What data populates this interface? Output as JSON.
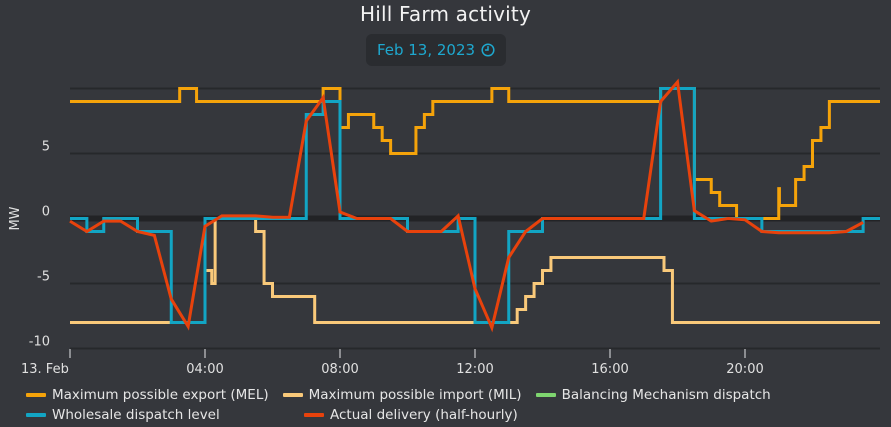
{
  "header": {
    "title": "Hill Farm activity",
    "date_label": "Feb 13, 2023",
    "date_icon": "clock-icon"
  },
  "colors": {
    "background": "#35373c",
    "grid": "#26282b",
    "zero_line": "#222326",
    "mel": "#f5a30a",
    "mil": "#f9c97a",
    "bm": "#7ed56f",
    "wholesale": "#12a5c4",
    "actual": "#e8420c",
    "date_text": "#1ea8cf"
  },
  "legend": {
    "row1": [
      {
        "label": "Maximum possible export (MEL)",
        "color": "#f5a30a"
      },
      {
        "label": "Maximum possible import (MIL)",
        "color": "#f9c97a"
      },
      {
        "label": "Balancing Mechanism dispatch",
        "color": "#7ed56f"
      }
    ],
    "row2": [
      {
        "label": "Wholesale dispatch level",
        "color": "#12a5c4"
      },
      {
        "label": "Actual delivery (half-hourly)",
        "color": "#e8420c"
      }
    ]
  },
  "chart_data": {
    "type": "line",
    "title": "Hill Farm activity",
    "subtitle": "Feb 13, 2023",
    "xlabel": "",
    "ylabel": "MW",
    "xlim_hours": [
      0,
      24
    ],
    "ylim": [
      -10,
      10
    ],
    "yticks": [
      -10,
      -5,
      0,
      5
    ],
    "ytick_labels": [
      "-10",
      "-5",
      "0",
      "5"
    ],
    "ygrid": [
      -10,
      -5,
      5,
      10
    ],
    "xticks_hours": [
      0,
      4,
      8,
      12,
      16,
      20
    ],
    "xtick_labels": [
      "13. Feb",
      "04:00",
      "08:00",
      "12:00",
      "16:00",
      "20:00"
    ],
    "grid": true,
    "legend_position": "bottom",
    "series": [
      {
        "name": "Maximum possible export (MEL)",
        "style": "step",
        "points": [
          [
            0,
            9
          ],
          [
            3.25,
            10
          ],
          [
            3.75,
            9
          ],
          [
            7.5,
            10
          ],
          [
            8.0,
            7
          ],
          [
            8.25,
            8
          ],
          [
            9.0,
            7
          ],
          [
            9.25,
            6
          ],
          [
            9.5,
            5
          ],
          [
            10.25,
            7
          ],
          [
            10.5,
            8
          ],
          [
            10.75,
            9
          ],
          [
            12.5,
            10
          ],
          [
            13.0,
            9
          ],
          [
            17.5,
            10
          ],
          [
            18.5,
            3
          ],
          [
            19.0,
            2
          ],
          [
            19.25,
            1
          ],
          [
            19.75,
            0
          ],
          [
            21.0,
            2.3
          ],
          [
            21.02,
            1
          ],
          [
            21.5,
            3
          ],
          [
            21.75,
            4
          ],
          [
            22.0,
            6
          ],
          [
            22.25,
            7
          ],
          [
            22.5,
            9
          ],
          [
            24,
            9
          ]
        ]
      },
      {
        "name": "Maximum possible import (MIL)",
        "style": "step",
        "points": [
          [
            0,
            -8
          ],
          [
            4.0,
            -4
          ],
          [
            4.2,
            -5
          ],
          [
            4.3,
            0
          ],
          [
            5.5,
            -1
          ],
          [
            5.75,
            -5
          ],
          [
            6.0,
            -6
          ],
          [
            7.25,
            -8
          ],
          [
            13.25,
            -7
          ],
          [
            13.5,
            -6
          ],
          [
            13.75,
            -5
          ],
          [
            14.0,
            -4
          ],
          [
            14.25,
            -3
          ],
          [
            17.6,
            -4
          ],
          [
            17.85,
            -8
          ],
          [
            24,
            -8
          ]
        ]
      },
      {
        "name": "Balancing Mechanism dispatch",
        "style": "step",
        "points": []
      },
      {
        "name": "Wholesale dispatch level",
        "style": "step",
        "points": [
          [
            0,
            0
          ],
          [
            0.5,
            -1
          ],
          [
            1.0,
            0
          ],
          [
            2.0,
            -1
          ],
          [
            3.0,
            -8
          ],
          [
            4.0,
            0
          ],
          [
            7.0,
            8
          ],
          [
            7.5,
            9
          ],
          [
            8.0,
            0
          ],
          [
            10.0,
            -1
          ],
          [
            11.5,
            0
          ],
          [
            12.0,
            -8
          ],
          [
            13.0,
            -1
          ],
          [
            14.0,
            0
          ],
          [
            17.5,
            10
          ],
          [
            18.5,
            0
          ],
          [
            20.5,
            -1
          ],
          [
            23.5,
            0
          ],
          [
            24,
            0
          ]
        ]
      },
      {
        "name": "Actual delivery (half-hourly)",
        "style": "line",
        "points": [
          [
            0,
            -0.2
          ],
          [
            0.5,
            -1
          ],
          [
            1.0,
            -0.2
          ],
          [
            1.5,
            -0.2
          ],
          [
            2.0,
            -1
          ],
          [
            2.5,
            -1.3
          ],
          [
            3.0,
            -6.2
          ],
          [
            3.5,
            -8.3
          ],
          [
            4.0,
            -0.6
          ],
          [
            4.5,
            0.2
          ],
          [
            5.0,
            0.2
          ],
          [
            5.5,
            0.2
          ],
          [
            6.0,
            0.1
          ],
          [
            6.5,
            0.1
          ],
          [
            7.0,
            7.5
          ],
          [
            7.5,
            9.3
          ],
          [
            8.0,
            0.5
          ],
          [
            8.5,
            0
          ],
          [
            9.0,
            0
          ],
          [
            9.5,
            0
          ],
          [
            10.0,
            -1
          ],
          [
            10.5,
            -1
          ],
          [
            11.0,
            -1
          ],
          [
            11.5,
            0.2
          ],
          [
            12.0,
            -5.4
          ],
          [
            12.5,
            -8.4
          ],
          [
            13.0,
            -3
          ],
          [
            13.5,
            -1
          ],
          [
            14.0,
            0
          ],
          [
            14.5,
            0
          ],
          [
            15.0,
            0
          ],
          [
            15.5,
            0
          ],
          [
            16.0,
            0
          ],
          [
            16.5,
            0
          ],
          [
            17.0,
            0
          ],
          [
            17.5,
            9
          ],
          [
            18.0,
            10.5
          ],
          [
            18.5,
            0.6
          ],
          [
            19.0,
            -0.2
          ],
          [
            19.5,
            0
          ],
          [
            20.0,
            -0.1
          ],
          [
            20.5,
            -1
          ],
          [
            21.0,
            -1.1
          ],
          [
            21.5,
            -1.1
          ],
          [
            22.0,
            -1.1
          ],
          [
            22.5,
            -1.1
          ],
          [
            23.0,
            -1
          ],
          [
            23.5,
            -0.3
          ]
        ]
      }
    ]
  }
}
